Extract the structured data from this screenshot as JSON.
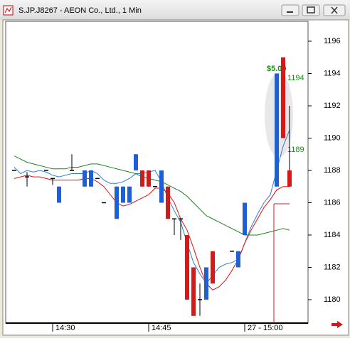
{
  "window": {
    "title": "S.JP.J8267 - AEON Co., Ltd., 1 Min"
  },
  "chart_data": {
    "type": "candlestick",
    "categories": [
      null,
      null,
      null,
      null,
      null,
      null,
      "14:30",
      null,
      null,
      null,
      null,
      null,
      null,
      null,
      null,
      null,
      null,
      null,
      null,
      null,
      null,
      "14:45",
      null,
      null,
      null,
      null,
      null,
      null,
      null,
      null,
      null,
      null,
      null,
      null,
      null,
      null,
      "27 - 15:00",
      null,
      null,
      null,
      null,
      null,
      null,
      null
    ],
    "open": [
      1188,
      null,
      1187.6,
      null,
      null,
      1188,
      1187.5,
      1186,
      null,
      1188,
      null,
      1187,
      1187,
      1187.5,
      1186,
      null,
      1185,
      1186,
      1186,
      1188,
      1188,
      1188,
      1187,
      1186,
      1187,
      1185,
      1185,
      1184,
      1182,
      1180,
      1180,
      1183,
      null,
      null,
      1183,
      1182,
      1184,
      null,
      null,
      null,
      null,
      1187,
      1195,
      1188
    ],
    "high": [
      1188,
      null,
      1187.9,
      null,
      null,
      1188,
      1187.5,
      1187,
      null,
      1189,
      null,
      1188,
      1188,
      1187.5,
      1186,
      null,
      1187,
      1187,
      1187,
      1189,
      1188,
      1188,
      1187,
      1188,
      1187,
      1185,
      1185,
      1184,
      1182,
      1181,
      1182,
      1183,
      null,
      null,
      1183,
      1183,
      1186,
      null,
      null,
      null,
      null,
      1194,
      1195,
      1192
    ],
    "low": [
      1188,
      null,
      1187.0,
      null,
      null,
      1188,
      1187.1,
      1186,
      null,
      1188,
      null,
      1187,
      1187,
      1187.5,
      1186,
      null,
      1185,
      1186,
      1186,
      1188,
      1187,
      1187,
      1187,
      1186,
      1185,
      1184,
      1183.7,
      1180,
      1179,
      1179,
      1180,
      1181,
      null,
      null,
      1183,
      1182,
      1184,
      null,
      null,
      null,
      null,
      1187,
      1190,
      1187
    ],
    "close": [
      1188,
      null,
      1187.6,
      null,
      null,
      1188,
      1187.5,
      1187,
      null,
      1188,
      null,
      1188,
      1188,
      1187.5,
      1186,
      null,
      1187,
      1187,
      1187,
      1189,
      1187,
      1187,
      1187,
      1188,
      1185,
      1185,
      1185,
      1180,
      1179,
      1180,
      1182,
      1181,
      null,
      null,
      1183,
      1183,
      1186,
      null,
      null,
      null,
      null,
      1194,
      1190,
      1187
    ],
    "up_color": "#1f5fd6",
    "down_color": "#d21a1a",
    "series": [
      {
        "color": "#2a7fd4",
        "values": [
          1188.2,
          1187.8,
          1188.0,
          1187.9,
          1188.0,
          1187.9,
          1187.7,
          1187.6,
          1187.7,
          1187.8,
          1187.8,
          1187.8,
          1188.0,
          1187.8,
          1187.4,
          1187.2,
          1187.2,
          1187.3,
          1187.5,
          1187.8,
          1187.8,
          1187.9,
          1188.0,
          1187.3,
          1186.3,
          1185.5,
          1184.8,
          1183.5,
          1182.3,
          1181.6,
          1181.0,
          1181.5,
          1182.0,
          1182.2,
          1182.3,
          1182.5,
          1183.5,
          1184.5,
          1185.3,
          1186.0,
          1186.5,
          1188.0,
          1189.5,
          1190.5
        ]
      },
      {
        "color": "#e01010",
        "values": [
          1187.5,
          1187.6,
          1187.7,
          1187.6,
          1187.6,
          1187.5,
          1187.4,
          1187.4,
          1187.4,
          1187.4,
          1187.4,
          1187.5,
          1187.5,
          1187.3,
          1187.0,
          1186.5,
          1186.0,
          1185.8,
          1185.9,
          1186.1,
          1186.3,
          1186.5,
          1186.9,
          1186.9,
          1186.6,
          1186.0,
          1185.0,
          1184.3,
          1183.2,
          1182.0,
          1181.0,
          1180.6,
          1180.8,
          1181.2,
          1181.8,
          1182.5,
          1183.5,
          1184.3,
          1185.0,
          1185.7,
          1186.2,
          1186.8,
          1187.0,
          1187.0
        ]
      },
      {
        "color": "#208020",
        "values": [
          1188.9,
          1188.7,
          1188.5,
          1188.4,
          1188.3,
          1188.2,
          1188.1,
          1188.1,
          1188.1,
          1188.2,
          1188.2,
          1188.3,
          1188.4,
          1188.4,
          1188.3,
          1188.2,
          1188.1,
          1188.0,
          1187.9,
          1187.8,
          1187.6,
          1187.5,
          1187.4,
          1187.3,
          1187.1,
          1186.9,
          1186.7,
          1186.4,
          1186.0,
          1185.6,
          1185.2,
          1185.0,
          1184.8,
          1184.6,
          1184.4,
          1184.2,
          1184.0,
          1184.0,
          1184.0,
          1184.1,
          1184.2,
          1184.3,
          1184.4,
          1184.3
        ]
      }
    ],
    "ylim": [
      1178.55,
      1197.23
    ],
    "yticks": [
      1180,
      1182,
      1184,
      1186,
      1188,
      1190,
      1192,
      1194,
      1196
    ],
    "annotations": [
      "$5.00",
      "1194",
      "1189"
    ]
  }
}
